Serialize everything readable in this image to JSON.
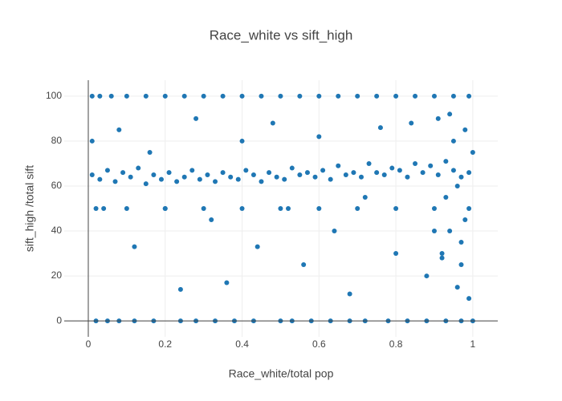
{
  "chart_data": {
    "type": "scatter",
    "title": "Race_white vs sift_high",
    "x_label": "Race_white/total pop",
    "y_label": "sift_high /total sift",
    "color": "#1f77b4",
    "grid": true,
    "xlim": [
      -0.0626,
      1.065
    ],
    "ylim": [
      -7.1,
      107.1
    ],
    "xticks": [
      0,
      0.2,
      0.4,
      0.6,
      0.8,
      1
    ],
    "yticks": [
      0,
      20,
      40,
      60,
      80,
      100
    ],
    "x": [
      0.01,
      0.03,
      0.06,
      0.1,
      0.15,
      0.2,
      0.25,
      0.3,
      0.35,
      0.4,
      0.45,
      0.5,
      0.55,
      0.6,
      0.65,
      0.7,
      0.75,
      0.8,
      0.85,
      0.9,
      0.95,
      0.99,
      0.02,
      0.05,
      0.08,
      0.12,
      0.17,
      0.24,
      0.28,
      0.33,
      0.38,
      0.43,
      0.5,
      0.53,
      0.58,
      0.63,
      0.68,
      0.72,
      0.78,
      0.83,
      0.88,
      0.93,
      0.97,
      1.0,
      0.01,
      0.03,
      0.05,
      0.07,
      0.09,
      0.11,
      0.13,
      0.15,
      0.17,
      0.19,
      0.21,
      0.23,
      0.25,
      0.27,
      0.29,
      0.31,
      0.33,
      0.35,
      0.37,
      0.39,
      0.41,
      0.43,
      0.45,
      0.47,
      0.49,
      0.51,
      0.53,
      0.55,
      0.57,
      0.59,
      0.61,
      0.63,
      0.65,
      0.67,
      0.69,
      0.71,
      0.73,
      0.75,
      0.77,
      0.79,
      0.81,
      0.83,
      0.85,
      0.87,
      0.89,
      0.91,
      0.93,
      0.95,
      0.97,
      0.99,
      0.01,
      0.04,
      0.08,
      0.12,
      0.16,
      0.2,
      0.24,
      0.28,
      0.32,
      0.36,
      0.4,
      0.44,
      0.48,
      0.52,
      0.56,
      0.6,
      0.64,
      0.68,
      0.72,
      0.76,
      0.8,
      0.84,
      0.88,
      0.9,
      0.92,
      0.94,
      0.96,
      0.97,
      0.98,
      0.99,
      1.0,
      0.99,
      0.98,
      0.97,
      0.96,
      0.95,
      0.94,
      0.93,
      0.92,
      0.91,
      0.02,
      0.1,
      0.2,
      0.3,
      0.4,
      0.5,
      0.6,
      0.7,
      0.8,
      0.9
    ],
    "values": [
      100,
      100,
      100,
      100,
      100,
      100,
      100,
      100,
      100,
      100,
      100,
      100,
      100,
      100,
      100,
      100,
      100,
      100,
      100,
      100,
      100,
      100,
      0,
      0,
      0,
      0,
      0,
      0,
      0,
      0,
      0,
      0,
      0,
      0,
      0,
      0,
      0,
      0,
      0,
      0,
      0,
      0,
      0,
      0,
      65,
      63,
      67,
      62,
      66,
      64,
      68,
      61,
      65,
      63,
      66,
      62,
      64,
      67,
      63,
      65,
      62,
      66,
      64,
      63,
      67,
      65,
      62,
      66,
      64,
      63,
      68,
      65,
      66,
      64,
      67,
      63,
      69,
      65,
      66,
      64,
      70,
      66,
      65,
      68,
      67,
      64,
      70,
      66,
      69,
      65,
      71,
      67,
      64,
      66,
      80,
      50,
      85,
      33,
      75,
      50,
      14,
      90,
      45,
      17,
      80,
      33,
      88,
      50,
      25,
      82,
      40,
      12,
      55,
      86,
      30,
      88,
      20,
      40,
      28,
      92,
      15,
      35,
      85,
      50,
      75,
      10,
      45,
      25,
      60,
      80,
      40,
      55,
      30,
      90,
      50,
      50,
      50,
      50,
      50,
      50,
      50,
      50,
      50,
      50
    ]
  }
}
